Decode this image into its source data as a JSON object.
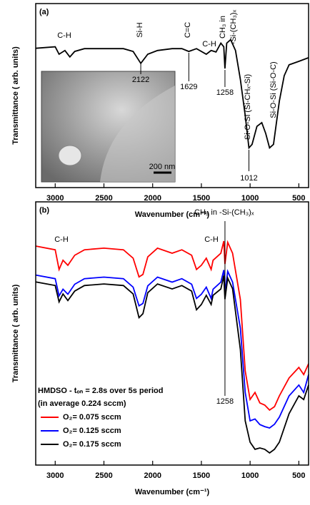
{
  "chart_data": [
    {
      "type": "line",
      "label": "(a)",
      "x_label": "Wavenumber (cm⁻¹)",
      "y_label": "Transmittance ( arb. units)",
      "xlim": [
        3200,
        400
      ],
      "ylim": [
        0,
        10
      ],
      "xticks": [
        3000,
        2500,
        2000,
        1500,
        1000,
        500
      ],
      "x": [
        3200,
        3000,
        2960,
        2900,
        2850,
        2800,
        2700,
        2500,
        2300,
        2200,
        2122,
        2050,
        1950,
        1800,
        1700,
        1629,
        1550,
        1450,
        1400,
        1350,
        1300,
        1270,
        1258,
        1240,
        1200,
        1150,
        1100,
        1050,
        1012,
        980,
        930,
        880,
        840,
        800,
        760,
        700,
        650,
        600,
        500,
        400
      ],
      "series": [
        {
          "color": "#000000",
          "values": [
            7.57,
            7.65,
            7.25,
            7.45,
            7.1,
            7.4,
            7.55,
            7.55,
            7.55,
            7.4,
            6.75,
            7.25,
            7.45,
            7.55,
            7.55,
            7.4,
            7.55,
            7.25,
            7.45,
            7.37,
            7.85,
            7.65,
            6.47,
            7.85,
            8.04,
            7.45,
            5.88,
            3.92,
            2.16,
            2.35,
            3.33,
            3.53,
            2.94,
            2.16,
            2.35,
            4.7,
            6.08,
            6.67,
            6.86,
            7.06
          ]
        }
      ],
      "peak_labels": [
        2122,
        1629,
        1258,
        1012
      ],
      "annotations": [
        "C-H",
        "Si-H",
        "C=C",
        "C-H",
        "CH₃ in",
        "-Si-(CH₃)ₓ",
        "Si-O-Si (Si-CHₓ-Si)",
        "Si-O-Si (Si-O-C)"
      ],
      "inset_label": "200 nm"
    },
    {
      "type": "line",
      "label": "(b)",
      "x_label": "Wavenumber (cm⁻¹)",
      "y_label": "Transmittance ( arb. units)",
      "xlim": [
        3200,
        400
      ],
      "ylim": [
        0,
        10
      ],
      "xticks": [
        3000,
        2500,
        2000,
        1500,
        1000,
        500
      ],
      "x": [
        3200,
        3000,
        2960,
        2920,
        2870,
        2800,
        2700,
        2500,
        2300,
        2200,
        2140,
        2100,
        2050,
        1950,
        1800,
        1700,
        1600,
        1550,
        1500,
        1450,
        1400,
        1380,
        1300,
        1270,
        1258,
        1230,
        1180,
        1100,
        1050,
        1000,
        950,
        900,
        850,
        800,
        750,
        700,
        600,
        500,
        450,
        400
      ],
      "series": [
        {
          "name": "O₂= 0.075 sccm",
          "color": "#ff0000",
          "values": [
            8.32,
            8.18,
            7.43,
            7.78,
            7.59,
            7.97,
            8.18,
            8.24,
            8.18,
            7.86,
            7.15,
            7.24,
            7.91,
            8.24,
            8.05,
            8.18,
            7.97,
            7.43,
            7.59,
            7.86,
            7.43,
            7.78,
            8.05,
            8.51,
            7.64,
            8.46,
            8.05,
            6.29,
            3.58,
            2.49,
            2.76,
            2.36,
            2.28,
            2.09,
            2.22,
            2.63,
            3.31,
            3.71,
            3.44,
            3.85
          ]
        },
        {
          "name": "O₂= 0.125 sccm",
          "color": "#0000ff",
          "values": [
            7.22,
            7.08,
            6.43,
            6.68,
            6.49,
            6.87,
            7.08,
            7.14,
            7.08,
            6.76,
            6.05,
            6.14,
            6.81,
            7.14,
            6.95,
            7.08,
            6.87,
            6.33,
            6.49,
            6.76,
            6.33,
            6.68,
            6.95,
            7.41,
            6.54,
            7.36,
            6.95,
            5.2,
            2.76,
            1.68,
            1.75,
            1.54,
            1.46,
            1.41,
            1.55,
            1.82,
            2.63,
            3.04,
            2.76,
            3.44
          ]
        },
        {
          "name": "O₂= 0.175 sccm",
          "color": "#000000",
          "values": [
            6.96,
            6.82,
            6.2,
            6.5,
            6.25,
            6.61,
            6.82,
            6.88,
            6.82,
            6.5,
            5.6,
            5.75,
            6.55,
            6.88,
            6.69,
            6.82,
            6.61,
            5.9,
            6.1,
            6.45,
            6.1,
            6.45,
            6.69,
            7.2,
            6.3,
            7.1,
            6.7,
            4.39,
            1.68,
            0.87,
            0.6,
            0.65,
            0.6,
            0.46,
            0.6,
            0.87,
            1.95,
            2.63,
            2.49,
            3.04
          ]
        }
      ],
      "peak_labels": [
        1258
      ],
      "annotations": [
        "C-H",
        "C-H",
        "CH₃ in -Si-(CH₃)ₓ"
      ],
      "legend_title": [
        "HMDSO - tₒₙ = 2.8s over 5s period",
        "(in average 0.224 sccm)"
      ]
    }
  ]
}
